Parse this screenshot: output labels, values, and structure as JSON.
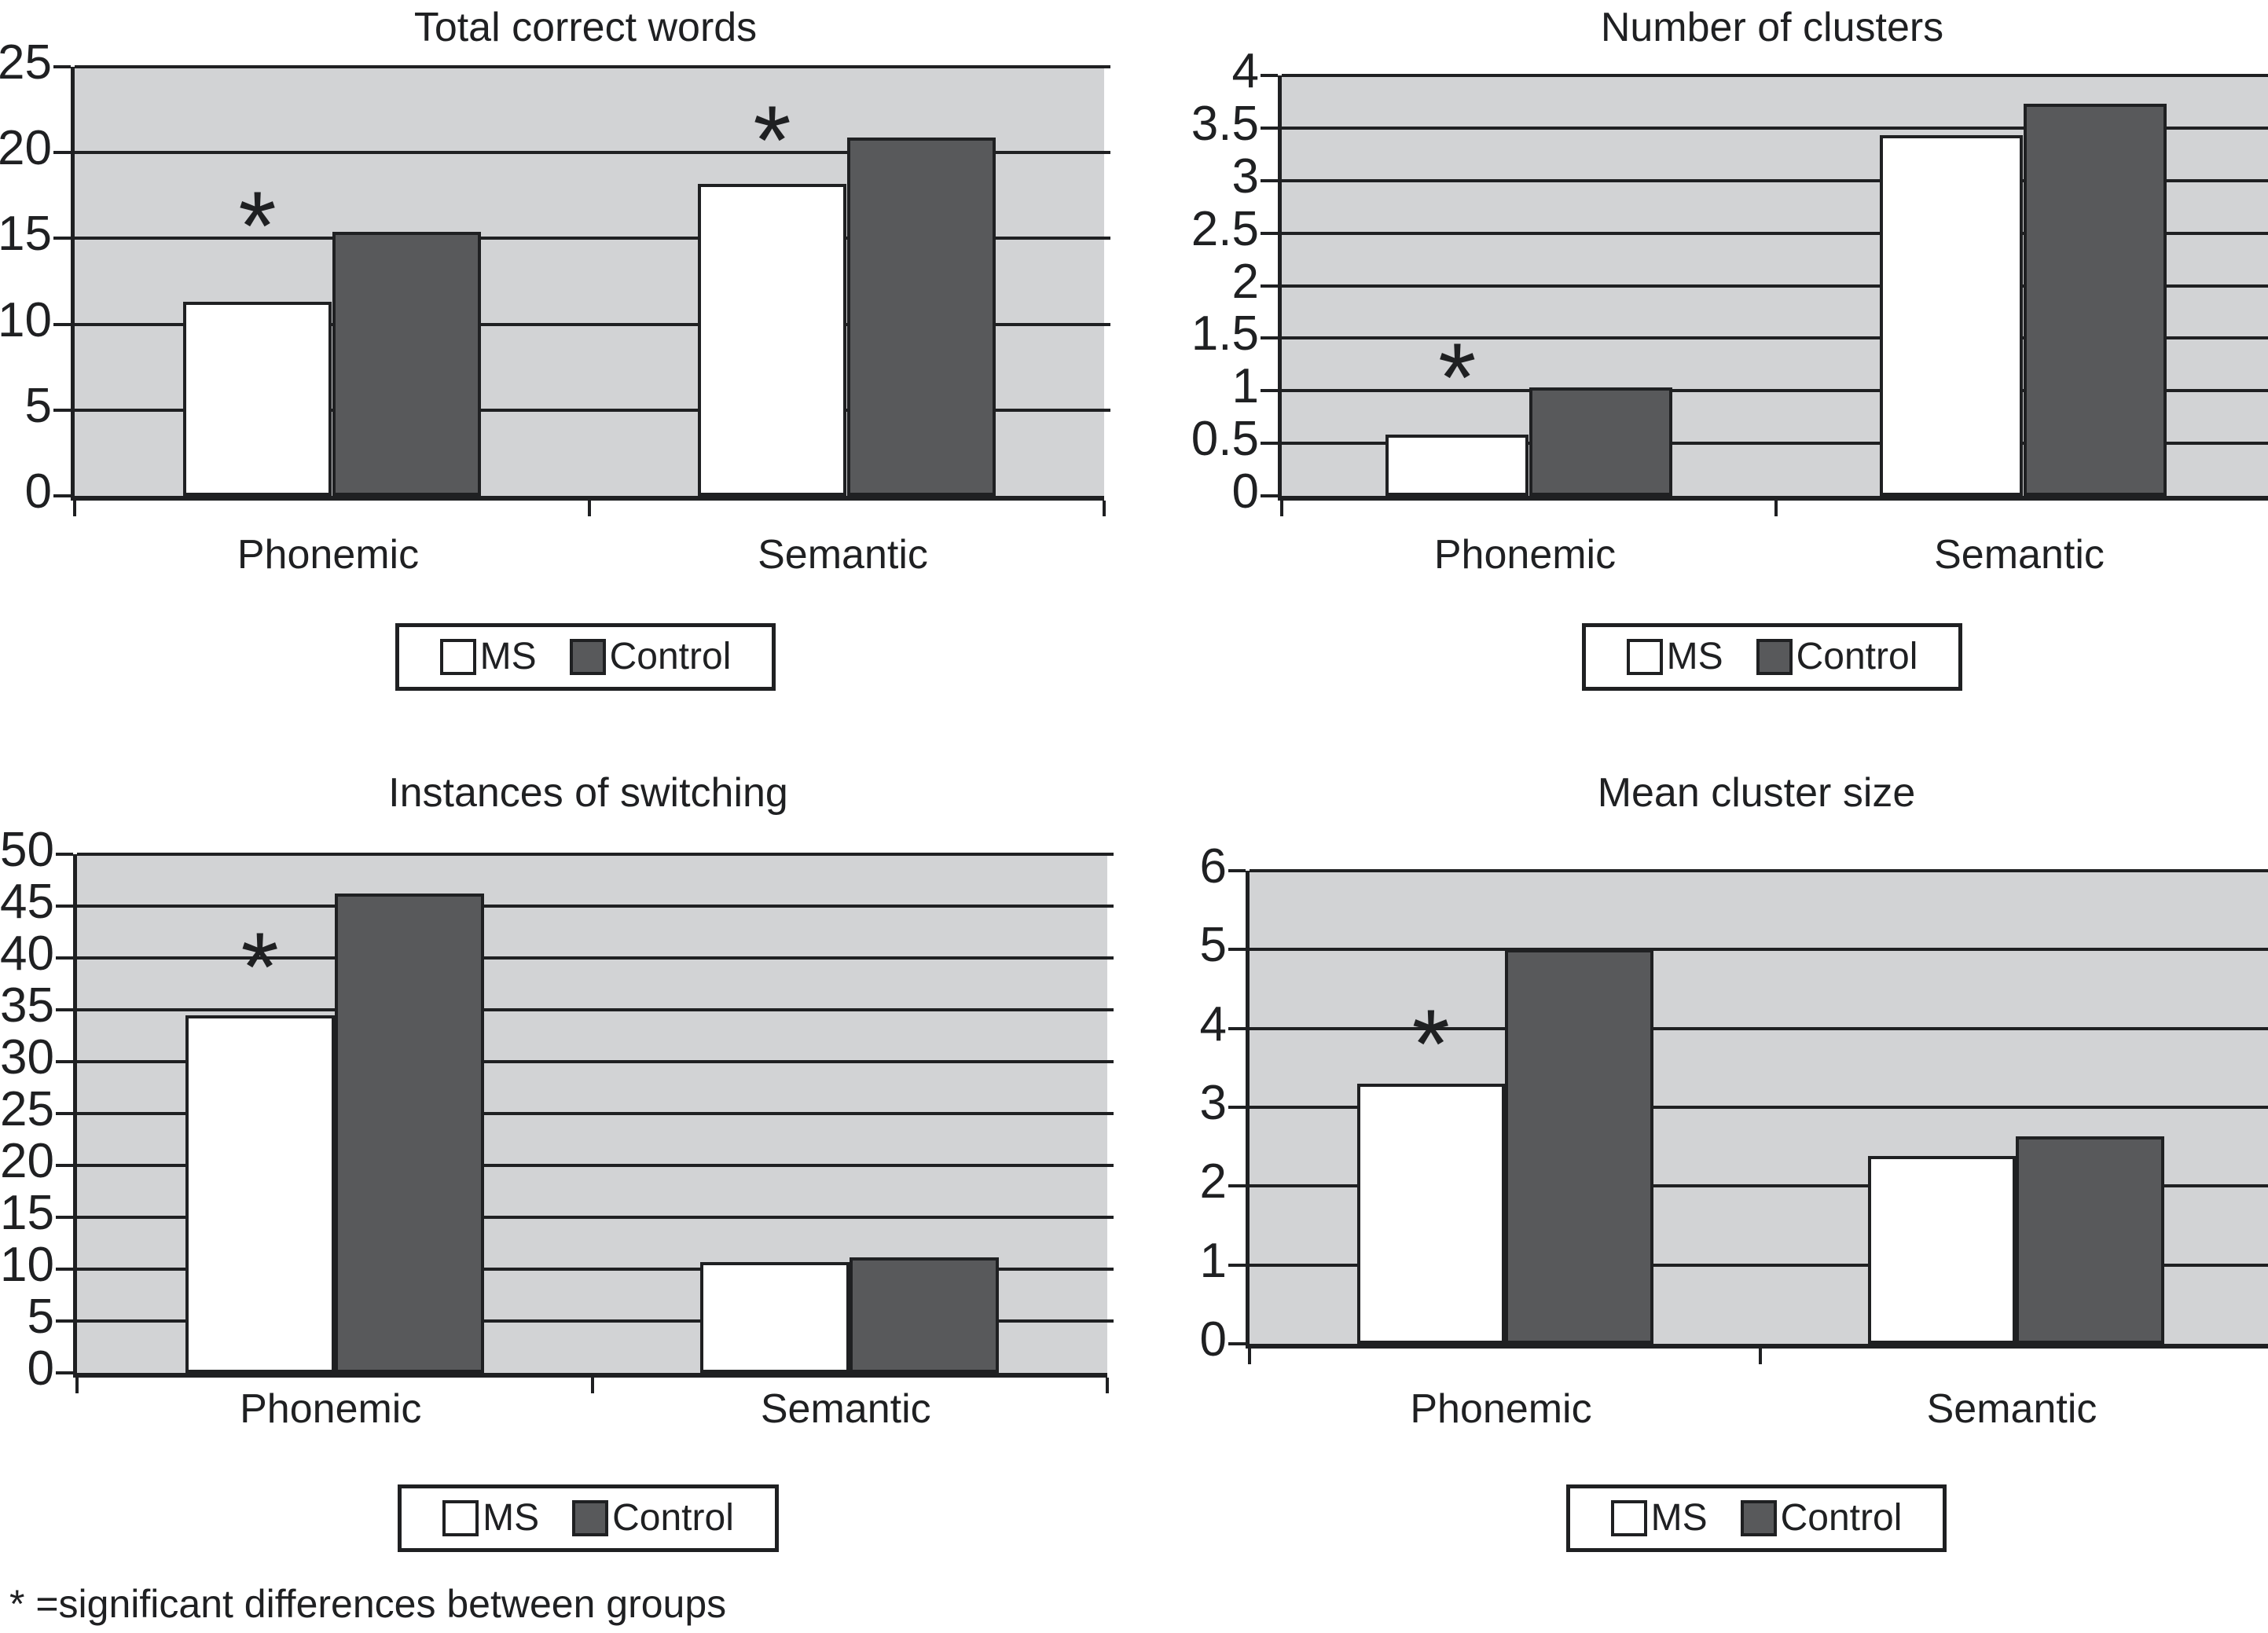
{
  "colors": {
    "plot_bg": "#d2d3d5",
    "ms_bar": "#ffffff",
    "control": "#58595b",
    "line": "#1f2022"
  },
  "annotation_symbol": "*",
  "footnote": "* =significant differences between groups",
  "chart_data": [
    {
      "type": "bar",
      "title": "Total correct words",
      "categories": [
        "Phonemic",
        "Semantic"
      ],
      "series": [
        {
          "name": "MS",
          "values": [
            11.3,
            18.2
          ]
        },
        {
          "name": "Control",
          "values": [
            15.4,
            20.9
          ]
        }
      ],
      "ylim": [
        0,
        25
      ],
      "y_tick_labels": [
        "0",
        "5",
        "10",
        "15",
        "20",
        "25"
      ],
      "grid": "horizontal",
      "legend_position": "below",
      "annotations": [
        {
          "category": "Phonemic",
          "series": "MS",
          "symbol": "*",
          "value_y": 16.6
        },
        {
          "category": "Semantic",
          "series": "MS",
          "symbol": "*",
          "value_y": 21.6
        }
      ]
    },
    {
      "type": "bar",
      "title": "Number of clusters",
      "categories": [
        "Phonemic",
        "Semantic"
      ],
      "series": [
        {
          "name": "MS",
          "values": [
            0.58,
            3.43
          ]
        },
        {
          "name": "Control",
          "values": [
            1.03,
            3.73
          ]
        }
      ],
      "ylim": [
        0,
        4
      ],
      "y_tick_labels": [
        "0",
        "0.5",
        "1",
        "1.5",
        "2",
        "2.5",
        "3",
        "3.5",
        "4"
      ],
      "grid": "horizontal",
      "legend_position": "below",
      "annotations": [
        {
          "category": "Phonemic",
          "series": "MS",
          "symbol": "*",
          "value_y": 1.27
        }
      ]
    },
    {
      "type": "bar",
      "title": "Instances of switching",
      "categories": [
        "Phonemic",
        "Semantic"
      ],
      "series": [
        {
          "name": "MS",
          "values": [
            34.5,
            10.7
          ]
        },
        {
          "name": "Control",
          "values": [
            46.2,
            11.1
          ]
        }
      ],
      "ylim": [
        0,
        50
      ],
      "y_tick_labels": [
        "0",
        "5",
        "10",
        "15",
        "20",
        "25",
        "30",
        "35",
        "40",
        "45",
        "50"
      ],
      "grid": "horizontal",
      "legend_position": "below",
      "annotations": [
        {
          "category": "Phonemic",
          "series": "MS",
          "symbol": "*",
          "value_y": 40.6
        }
      ]
    },
    {
      "type": "bar",
      "title": "Mean cluster size",
      "categories": [
        "Phonemic",
        "Semantic"
      ],
      "series": [
        {
          "name": "MS",
          "values": [
            3.3,
            2.38
          ]
        },
        {
          "name": "Control",
          "values": [
            5.0,
            2.63
          ]
        }
      ],
      "ylim": [
        0,
        6
      ],
      "y_tick_labels": [
        "0",
        "1",
        "2",
        "3",
        "4",
        "5",
        "6"
      ],
      "grid": "horizontal",
      "legend_position": "below",
      "annotations": [
        {
          "category": "Phonemic",
          "series": "MS",
          "symbol": "*",
          "value_y": 4.0
        }
      ]
    }
  ]
}
